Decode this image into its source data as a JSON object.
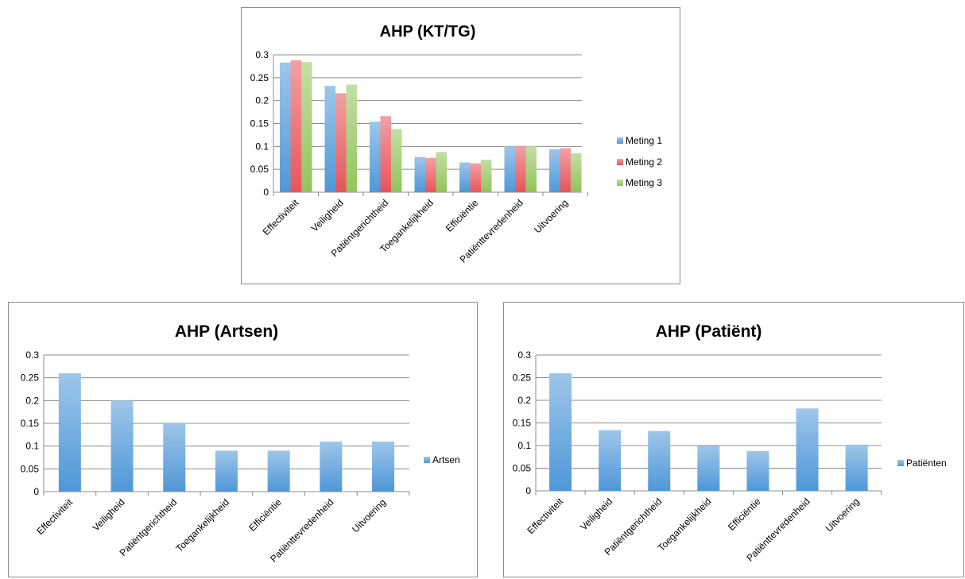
{
  "chart_data": [
    {
      "type": "bar",
      "title": "AHP (KT/TG)",
      "categories": [
        "Effectiviteit",
        "Veiligheid",
        "Patiëntgerichtheid",
        "Toegankelijkheid",
        "Efficiëntie",
        "Patiënttevredenheid",
        "Uitvoering"
      ],
      "series": [
        {
          "name": "Meting 1",
          "color": "#4f97d8",
          "values": [
            0.283,
            0.232,
            0.154,
            0.077,
            0.065,
            0.1,
            0.094
          ]
        },
        {
          "name": "Meting 2",
          "color": "#e8545a",
          "values": [
            0.288,
            0.216,
            0.166,
            0.075,
            0.063,
            0.1,
            0.096
          ]
        },
        {
          "name": "Meting 3",
          "color": "#92c45a",
          "values": [
            0.284,
            0.235,
            0.138,
            0.088,
            0.071,
            0.1,
            0.085
          ]
        }
      ],
      "ylim": [
        0,
        0.3
      ],
      "yticks": [
        "0",
        "0.05",
        "0.1",
        "0.15",
        "0.2",
        "0.25",
        "0.3"
      ],
      "grid": true,
      "legend": "right"
    },
    {
      "type": "bar",
      "title": "AHP (Artsen)",
      "categories": [
        "Effectiviteit",
        "Veiligheid",
        "Patiëntgerichtheid",
        "Toegankelijkheid",
        "Efficiëntie",
        "Patiënttevredenheid",
        "Uitvoering"
      ],
      "series": [
        {
          "name": "Artsen",
          "color": "#4f97d8",
          "values": [
            0.26,
            0.2,
            0.15,
            0.09,
            0.09,
            0.11,
            0.11
          ]
        }
      ],
      "ylim": [
        0,
        0.3
      ],
      "yticks": [
        "0",
        "0.05",
        "0.1",
        "0.15",
        "0.2",
        "0.25",
        "0.3"
      ],
      "grid": true,
      "legend": "right"
    },
    {
      "type": "bar",
      "title": "AHP (Patiënt)",
      "categories": [
        "Effectiviteit",
        "Veiligheid",
        "Patiëntgerichtheid",
        "Toegankelijkheid",
        "Efficiëntie",
        "Patiënttevredenheid",
        "Uitvoering"
      ],
      "series": [
        {
          "name": "Patiënten",
          "color": "#4f97d8",
          "values": [
            0.26,
            0.134,
            0.132,
            0.099,
            0.088,
            0.182,
            0.102
          ]
        }
      ],
      "ylim": [
        0,
        0.3
      ],
      "yticks": [
        "0",
        "0.05",
        "0.1",
        "0.15",
        "0.2",
        "0.25",
        "0.3"
      ],
      "grid": true,
      "legend": "right"
    }
  ]
}
